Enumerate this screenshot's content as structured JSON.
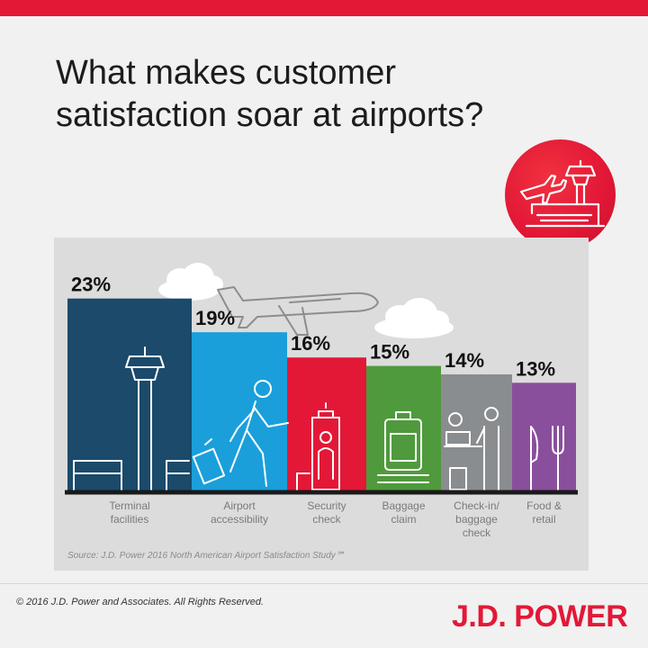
{
  "title": "What makes customer satisfaction soar at airports?",
  "colors": {
    "accent": "#e31837",
    "bars": [
      "#1b4a6b",
      "#1a9fdb",
      "#e31837",
      "#4f9a3c",
      "#8a8d8f",
      "#8a4f9c"
    ],
    "baseline": "#1a1a1a"
  },
  "icons": [
    "airport-badge-icon",
    "control-tower-icon",
    "walking-traveler-icon",
    "security-scanner-icon",
    "luggage-icon",
    "check-in-desk-icon",
    "fork-knife-icon",
    "airplane-icon",
    "cloud-icon"
  ],
  "chart_data": {
    "type": "bar",
    "title": "What makes customer satisfaction soar at airports?",
    "categories": [
      "Terminal facilities",
      "Airport accessibility",
      "Security check",
      "Baggage claim",
      "Check-in/ baggage check",
      "Food & retail"
    ],
    "category_lines": [
      [
        "Terminal",
        "facilities"
      ],
      [
        "Airport",
        "accessibility"
      ],
      [
        "Security",
        "check"
      ],
      [
        "Baggage",
        "claim"
      ],
      [
        "Check-in/",
        "baggage",
        "check"
      ],
      [
        "Food &",
        "retail"
      ]
    ],
    "values": [
      23,
      19,
      16,
      15,
      14,
      13
    ],
    "value_labels": [
      "23%",
      "19%",
      "16%",
      "15%",
      "14%",
      "13%"
    ],
    "unit": "%",
    "ylim": [
      0,
      26
    ],
    "grid": false,
    "legend": "none"
  },
  "source": "Source: J.D. Power 2016 North American Airport Satisfaction Study℠",
  "footer": {
    "copyright": "© 2016 J.D. Power and Associates. All Rights Reserved.",
    "logo": "J.D. POWER"
  }
}
